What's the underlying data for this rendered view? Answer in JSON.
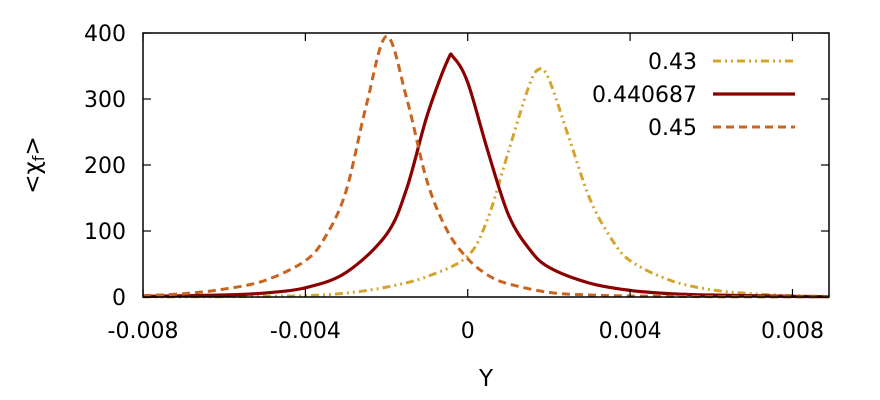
{
  "chart_data": {
    "type": "line",
    "xlabel": "Y",
    "ylabel": "<χf>",
    "ylabel_main": "<χ",
    "ylabel_sub": "f",
    "ylabel_end": ">",
    "xlim": [
      -0.008,
      0.0089
    ],
    "ylim": [
      0,
      400
    ],
    "x_ticks": [
      -0.008,
      -0.004,
      0,
      0.004,
      0.008
    ],
    "x_tick_labels": [
      "-0.008",
      "-0.004",
      "0",
      "0.004",
      "0.008"
    ],
    "y_ticks": [
      0,
      100,
      200,
      300,
      400
    ],
    "y_tick_labels": [
      "0",
      "100",
      "200",
      "300",
      "400"
    ],
    "grid": false,
    "legend_position": "top-right",
    "series": [
      {
        "name": "0.43",
        "color": "#d4a52c",
        "dash": "dash-dot-dot",
        "x": [
          -0.008,
          -0.006,
          -0.004,
          -0.003,
          -0.002,
          -0.001,
          0.0,
          0.0005,
          0.001,
          0.0015,
          0.00175,
          0.002,
          0.0025,
          0.003,
          0.0035,
          0.004,
          0.005,
          0.006,
          0.007,
          0.008,
          0.0089
        ],
        "y": [
          0.2,
          0.5,
          2,
          6,
          15,
          31,
          62,
          120,
          220,
          318,
          345,
          330,
          240,
          150,
          92,
          55,
          25,
          11,
          5,
          2,
          1
        ]
      },
      {
        "name": "0.440687",
        "color": "#8b0000",
        "dash": "solid",
        "x": [
          -0.008,
          -0.006,
          -0.005,
          -0.004,
          -0.003,
          -0.002,
          -0.0015,
          -0.001,
          -0.0005,
          -0.00035,
          0.0,
          0.0005,
          0.001,
          0.0015,
          0.002,
          0.003,
          0.004,
          0.005,
          0.006,
          0.008,
          0.0089
        ],
        "y": [
          1,
          3,
          6,
          14,
          37,
          95,
          165,
          275,
          358,
          363,
          325,
          220,
          125,
          74,
          45,
          21,
          10,
          5,
          3,
          1,
          0.5
        ]
      },
      {
        "name": "0.45",
        "color": "#c8641e",
        "dash": "dashed",
        "x": [
          -0.008,
          -0.007,
          -0.006,
          -0.005,
          -0.004,
          -0.0035,
          -0.003,
          -0.0025,
          -0.002,
          -0.0015,
          -0.001,
          -0.0005,
          0.0,
          0.0005,
          0.001,
          0.002,
          0.003,
          0.004,
          0.006,
          0.008,
          0.0089
        ],
        "y": [
          2,
          5,
          12,
          25,
          55,
          92,
          160,
          290,
          395,
          300,
          175,
          100,
          58,
          33,
          20,
          7,
          3,
          1.5,
          0.5,
          0.2,
          0.1
        ]
      }
    ]
  }
}
